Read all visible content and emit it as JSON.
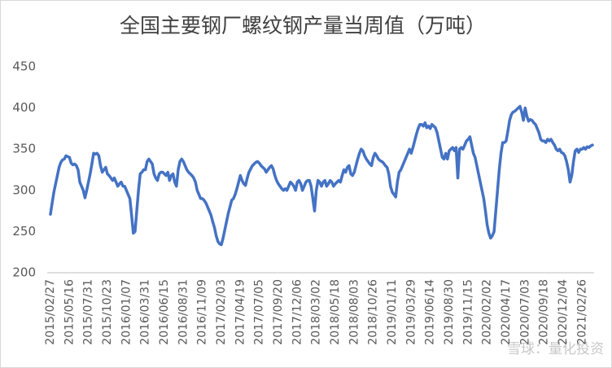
{
  "chart_data": {
    "type": "line",
    "title": "全国主要钢厂螺纹钢产量当周值（万吨）",
    "watermark": "雪球：量化投资",
    "color": "#4472c4",
    "ylim": [
      200,
      450
    ],
    "yticks": [
      200,
      250,
      300,
      350,
      400,
      450
    ],
    "grid": false,
    "categories": [
      "2015/02/27",
      null,
      null,
      null,
      null,
      null,
      null,
      null,
      null,
      null,
      null,
      "2015/05/16",
      null,
      null,
      null,
      null,
      null,
      null,
      null,
      null,
      null,
      null,
      "2015/07/31",
      null,
      null,
      null,
      null,
      null,
      null,
      null,
      null,
      null,
      null,
      "2015/10/23",
      null,
      null,
      null,
      null,
      null,
      null,
      null,
      null,
      null,
      null,
      "2016/01/07",
      null,
      null,
      null,
      null,
      null,
      null,
      null,
      null,
      null,
      null,
      "2016/03/31",
      null,
      null,
      null,
      null,
      null,
      null,
      null,
      null,
      null,
      null,
      "2016/06/15",
      null,
      null,
      null,
      null,
      null,
      null,
      null,
      null,
      null,
      null,
      "2016/08/31",
      null,
      null,
      null,
      null,
      null,
      null,
      null,
      null,
      null,
      null,
      "2016/11/09",
      null,
      null,
      null,
      null,
      null,
      null,
      null,
      null,
      null,
      null,
      "2017/02/03",
      null,
      null,
      null,
      null,
      null,
      null,
      null,
      null,
      null,
      null,
      "2017/04/19",
      null,
      null,
      null,
      null,
      null,
      null,
      null,
      null,
      null,
      null,
      "2017/07/05",
      null,
      null,
      null,
      null,
      null,
      null,
      null,
      null,
      null,
      null,
      "2017/09/20",
      null,
      null,
      null,
      null,
      null,
      null,
      null,
      null,
      null,
      null,
      "2017/12/06",
      null,
      null,
      null,
      null,
      null,
      null,
      null,
      null,
      null,
      null,
      "2018/03/02",
      null,
      null,
      null,
      null,
      null,
      null,
      null,
      null,
      null,
      null,
      "2018/05/18",
      null,
      null,
      null,
      null,
      null,
      null,
      null,
      null,
      null,
      null,
      "2018/08/03",
      null,
      null,
      null,
      null,
      null,
      null,
      null,
      null,
      null,
      null,
      "2018/10/26",
      null,
      null,
      null,
      null,
      null,
      null,
      null,
      null,
      null,
      null,
      "2019/01/11",
      null,
      null,
      null,
      null,
      null,
      null,
      null,
      null,
      null,
      null,
      "2019/03/29",
      null,
      null,
      null,
      null,
      null,
      null,
      null,
      null,
      null,
      null,
      "2019/06/14",
      null,
      null,
      null,
      null,
      null,
      null,
      null,
      null,
      null,
      null,
      "2019/08/30",
      null,
      null,
      null,
      null,
      null,
      null,
      null,
      null,
      null,
      null,
      "2019/11/15",
      null,
      null,
      null,
      null,
      null,
      null,
      null,
      null,
      null,
      null,
      "2020/02/02",
      null,
      null,
      null,
      null,
      null,
      null,
      null,
      null,
      null,
      null,
      "2020/04/17",
      null,
      null,
      null,
      null,
      null,
      null,
      null,
      null,
      null,
      null,
      "2020/07/03",
      null,
      null,
      null,
      null,
      null,
      null,
      null,
      null,
      null,
      null,
      "2020/09/18",
      null,
      null,
      null,
      null,
      null,
      null,
      null,
      null,
      null,
      null,
      "2020/12/04",
      null,
      null,
      null,
      null,
      null,
      null,
      null,
      null,
      null,
      null,
      "2021/02/26",
      null,
      null,
      null,
      null,
      null,
      null
    ],
    "values": [
      271,
      285,
      298,
      308,
      318,
      328,
      334,
      337,
      338,
      342,
      341,
      340,
      333,
      331,
      332,
      330,
      325,
      310,
      305,
      300,
      291,
      300,
      310,
      320,
      332,
      345,
      344,
      345,
      342,
      330,
      322,
      325,
      328,
      320,
      318,
      315,
      312,
      315,
      310,
      305,
      308,
      310,
      305,
      305,
      300,
      295,
      290,
      270,
      248,
      250,
      275,
      300,
      320,
      322,
      325,
      325,
      335,
      338,
      335,
      332,
      320,
      315,
      312,
      320,
      322,
      322,
      320,
      318,
      322,
      312,
      318,
      320,
      310,
      305,
      325,
      335,
      338,
      335,
      330,
      325,
      322,
      320,
      318,
      315,
      310,
      300,
      295,
      290,
      290,
      288,
      285,
      280,
      275,
      270,
      262,
      255,
      245,
      238,
      235,
      234,
      242,
      252,
      262,
      272,
      280,
      288,
      290,
      295,
      302,
      310,
      318,
      312,
      308,
      306,
      315,
      322,
      326,
      330,
      332,
      334,
      335,
      333,
      330,
      328,
      326,
      322,
      325,
      328,
      330,
      326,
      318,
      312,
      308,
      305,
      302,
      300,
      302,
      300,
      305,
      310,
      308,
      305,
      300,
      310,
      312,
      308,
      300,
      305,
      310,
      312,
      312,
      305,
      290,
      275,
      300,
      312,
      310,
      305,
      310,
      312,
      305,
      308,
      312,
      310,
      305,
      308,
      310,
      312,
      310,
      318,
      325,
      322,
      328,
      330,
      320,
      318,
      322,
      330,
      338,
      345,
      350,
      348,
      342,
      338,
      335,
      332,
      330,
      340,
      345,
      342,
      338,
      336,
      335,
      333,
      330,
      328,
      320,
      305,
      298,
      295,
      292,
      310,
      322,
      325,
      330,
      335,
      340,
      345,
      350,
      345,
      352,
      360,
      368,
      375,
      380,
      380,
      378,
      382,
      376,
      378,
      375,
      380,
      378,
      376,
      370,
      360,
      350,
      340,
      338,
      345,
      338,
      348,
      350,
      352,
      348,
      352,
      315,
      350,
      352,
      350,
      355,
      360,
      362,
      365,
      355,
      345,
      340,
      330,
      320,
      310,
      300,
      290,
      275,
      258,
      248,
      242,
      245,
      250,
      275,
      300,
      325,
      345,
      358,
      358,
      360,
      372,
      385,
      392,
      395,
      396,
      398,
      400,
      402,
      395,
      385,
      400,
      390,
      384,
      386,
      385,
      382,
      380,
      375,
      370,
      362,
      360,
      360,
      358,
      362,
      360,
      362,
      358,
      355,
      350,
      348,
      350,
      346,
      345,
      342,
      335,
      325,
      310,
      318,
      335,
      348,
      350,
      346,
      350,
      350,
      352,
      350,
      353,
      352,
      354,
      355
    ]
  }
}
